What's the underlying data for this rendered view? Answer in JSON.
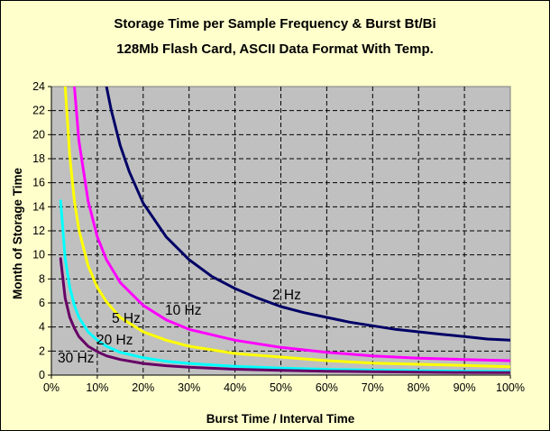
{
  "chart_data": {
    "type": "line",
    "title": [
      "Storage Time per Sample Frequency & Burst Bt/Bi",
      "128Mb Flash Card, ASCII Data Format With Temp."
    ],
    "xlabel": "Burst Time / Interval Time",
    "ylabel": "Month of Storage Time",
    "xlim": [
      0,
      100
    ],
    "ylim": [
      0,
      24
    ],
    "x_unit": "%",
    "xticks": [
      "0%",
      "10%",
      "20%",
      "30%",
      "40%",
      "50%",
      "60%",
      "70%",
      "80%",
      "90%",
      "100%"
    ],
    "yticks": [
      "0",
      "2",
      "4",
      "6",
      "8",
      "10",
      "12",
      "14",
      "16",
      "18",
      "20",
      "22",
      "24"
    ],
    "grid": "dashed",
    "legend": "none (labels placed on curves)",
    "plot_background": "#c0c0c0",
    "series": [
      {
        "name": "2 Hz",
        "color": "#000066",
        "x": [
          12,
          13,
          15,
          17,
          20,
          25,
          30,
          35,
          40,
          45,
          50,
          55,
          60,
          65,
          70,
          75,
          80,
          85,
          90,
          95,
          100
        ],
        "y": [
          24,
          22.1,
          19.1,
          16.9,
          14.3,
          11.5,
          9.6,
          8.2,
          7.2,
          6.4,
          5.7,
          5.2,
          4.8,
          4.4,
          4.1,
          3.8,
          3.6,
          3.4,
          3.2,
          3.0,
          2.9
        ]
      },
      {
        "name": "10 Hz",
        "color": "#ff00ff",
        "x": [
          5,
          6,
          8,
          10,
          12,
          15,
          20,
          25,
          30,
          40,
          50,
          60,
          70,
          80,
          90,
          100
        ],
        "y": [
          24,
          19.5,
          14.5,
          11.5,
          9.6,
          7.7,
          5.8,
          4.6,
          3.8,
          2.9,
          2.3,
          1.9,
          1.6,
          1.4,
          1.3,
          1.2
        ]
      },
      {
        "name": "5 Hz",
        "color": "#ffff00",
        "x": [
          3,
          4,
          5,
          6,
          8,
          10,
          12,
          15,
          20,
          25,
          30,
          40,
          50,
          60,
          70,
          80,
          90,
          100
        ],
        "y": [
          24,
          18.2,
          14.5,
          12.1,
          9.1,
          7.3,
          6.1,
          4.8,
          3.6,
          2.9,
          2.4,
          1.8,
          1.5,
          1.2,
          1.0,
          0.9,
          0.8,
          0.7
        ]
      },
      {
        "name": "20 Hz",
        "color": "#00ffff",
        "x": [
          2,
          3,
          4,
          5,
          6,
          8,
          10,
          12,
          15,
          20,
          25,
          30,
          40,
          50,
          60,
          70,
          80,
          90,
          100
        ],
        "y": [
          14.5,
          9.7,
          7.3,
          5.8,
          4.8,
          3.6,
          2.9,
          2.4,
          1.9,
          1.45,
          1.15,
          0.97,
          0.73,
          0.58,
          0.48,
          0.41,
          0.36,
          0.32,
          0.3
        ]
      },
      {
        "name": "30 Hz",
        "color": "#660066",
        "x": [
          2,
          3,
          4,
          5,
          6,
          8,
          10,
          12,
          15,
          20,
          25,
          30,
          40,
          50,
          60,
          70,
          80,
          90,
          100
        ],
        "y": [
          9.7,
          6.4,
          4.8,
          3.9,
          3.2,
          2.4,
          1.95,
          1.6,
          1.3,
          0.97,
          0.78,
          0.65,
          0.49,
          0.39,
          0.32,
          0.28,
          0.24,
          0.22,
          0.2
        ]
      }
    ]
  }
}
